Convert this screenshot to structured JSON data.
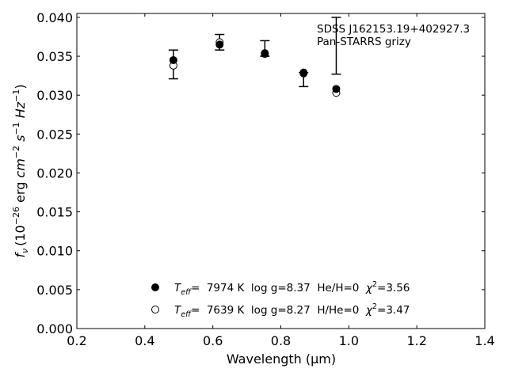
{
  "chart_data": {
    "type": "scatter",
    "annotation_lines": [
      "SDSS J162153.19+402927.3",
      "Pan-STARRS grizy"
    ],
    "xlabel": "Wavelength (μm)",
    "ylabel_math": {
      "f": "f",
      "nu": "ν",
      "unit_open": "(10",
      "exp26": "−26",
      "erg": " erg ",
      "cm": "cm",
      "exp2": "−2",
      "s": " s",
      "exp1a": "−1",
      "hz": " Hz",
      "exp1b": "−1",
      "close": ")"
    },
    "xlim": [
      0.2,
      1.4
    ],
    "ylim": [
      0.0,
      0.0405
    ],
    "xticks": [
      0.2,
      0.4,
      0.6,
      0.8,
      1.0,
      1.2,
      1.4
    ],
    "xtick_labels": [
      "0.2",
      "0.4",
      "0.6",
      "0.8",
      "1.0",
      "1.2",
      "1.4"
    ],
    "yticks": [
      0.0,
      0.005,
      0.01,
      0.015,
      0.02,
      0.025,
      0.03,
      0.035,
      0.04
    ],
    "ytick_labels": [
      "0.000",
      "0.005",
      "0.010",
      "0.015",
      "0.020",
      "0.025",
      "0.030",
      "0.035",
      "0.040"
    ],
    "observed": [
      {
        "x": 0.484,
        "y": 0.0339,
        "yerr_low": 0.0321,
        "yerr_high": 0.0358
      },
      {
        "x": 0.62,
        "y": 0.0368,
        "yerr_low": 0.0358,
        "yerr_high": 0.0378
      },
      {
        "x": 0.753,
        "y": 0.0354,
        "yerr_low": 0.035,
        "yerr_high": 0.037
      },
      {
        "x": 0.867,
        "y": 0.0328,
        "yerr_low": 0.0311,
        "yerr_high": 0.0329
      },
      {
        "x": 0.963,
        "y": 0.0304,
        "yerr_low": 0.0327,
        "yerr_high": 0.04
      }
    ],
    "series": [
      {
        "marker": "filled-circle",
        "legend": {
          "teff_pre": "T",
          "teff_sub": "eff",
          "teff_rest": "=  7974 K  log g=8.37  He/H=0  ",
          "chi": "χ",
          "chi_sup": "2",
          "chi_rest": "=3.56"
        },
        "x": [
          0.484,
          0.62,
          0.753,
          0.867,
          0.963
        ],
        "y": [
          0.0345,
          0.0365,
          0.0354,
          0.0329,
          0.0308
        ]
      },
      {
        "marker": "open-circle",
        "legend": {
          "teff_pre": "T",
          "teff_sub": "eff",
          "teff_rest": "=  7639 K  log g=8.27  H/He=0  ",
          "chi": "χ",
          "chi_sup": "2",
          "chi_rest": "=3.47"
        },
        "x": [
          0.484,
          0.62,
          0.753,
          0.867,
          0.963
        ],
        "y": [
          0.0338,
          0.0368,
          0.0353,
          0.0328,
          0.0303
        ]
      }
    ],
    "grid": false,
    "legend_position": "lower-center"
  }
}
